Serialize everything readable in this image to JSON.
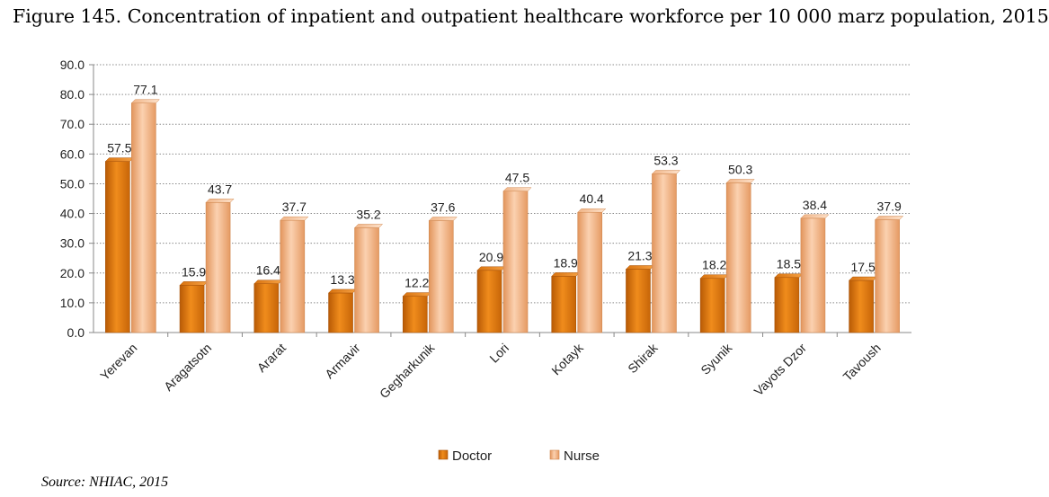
{
  "figure_title": "Figure 145. Concentration of inpatient and outpatient healthcare workforce per 10 000 marz population, 2015",
  "source": "Source: NHIAC, 2015",
  "chart_data": {
    "type": "bar",
    "categories": [
      "Yerevan",
      "Aragatsotn",
      "Ararat",
      "Armavir",
      "Gegharkunik",
      "Lori",
      "Kotayk",
      "Shirak",
      "Syunik",
      "Vayots Dzor",
      "Tavoush"
    ],
    "series": [
      {
        "name": "Doctor",
        "values": [
          57.5,
          15.9,
          16.4,
          13.3,
          12.2,
          20.9,
          18.9,
          21.3,
          18.2,
          18.5,
          17.5
        ],
        "color": "#e07b12"
      },
      {
        "name": "Nurse",
        "values": [
          77.1,
          43.7,
          37.7,
          35.2,
          37.6,
          47.5,
          40.4,
          53.3,
          50.3,
          38.4,
          37.9
        ],
        "color": "#f2b07e"
      }
    ],
    "ylim": [
      0,
      90
    ],
    "yticks": [
      "0.0",
      "10.0",
      "20.0",
      "30.0",
      "40.0",
      "50.0",
      "60.0",
      "70.0",
      "80.0",
      "90.0"
    ],
    "grid": true,
    "legend_position": "bottom",
    "xlabel": "",
    "ylabel": ""
  }
}
